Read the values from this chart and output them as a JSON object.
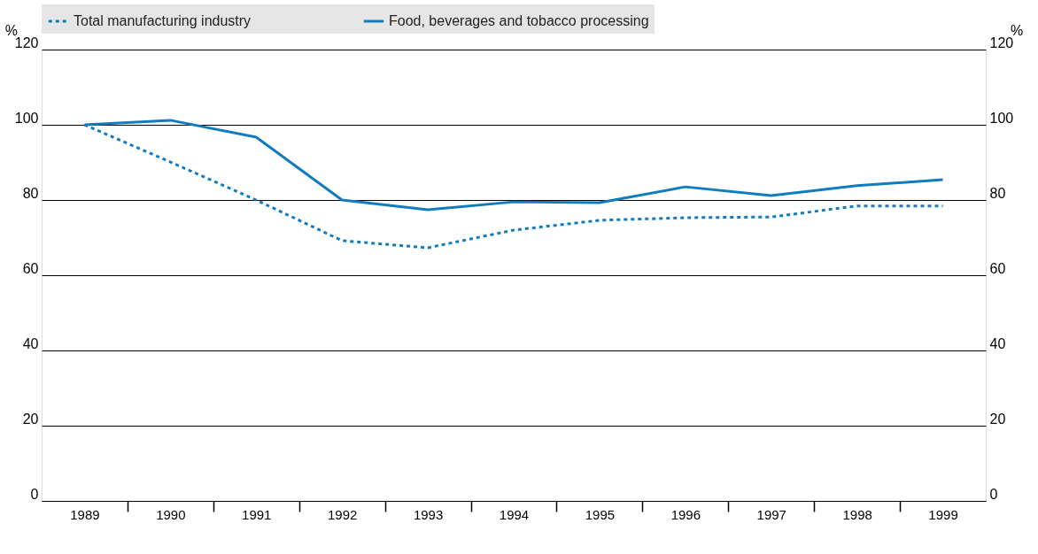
{
  "chart_data": {
    "type": "line",
    "categories": [
      "1989",
      "1990",
      "1991",
      "1992",
      "1993",
      "1994",
      "1995",
      "1996",
      "1997",
      "1998",
      "1999"
    ],
    "series": [
      {
        "name": "Total manufacturing industry",
        "color": "#0f7cc0",
        "line_style": "dotted",
        "values": [
          100,
          90.1,
          80,
          69.2,
          67.3,
          72,
          74.6,
          75.3,
          75.5,
          78.4,
          78.4
        ]
      },
      {
        "name": "Food, beverages and tobacco processing",
        "color": "#0f7cc0",
        "line_style": "solid",
        "values": [
          100,
          101.2,
          96.7,
          80,
          77.4,
          79.5,
          79.3,
          83.5,
          81.2,
          83.8,
          85.4
        ]
      }
    ],
    "ylabel": "%",
    "y2label": "%",
    "ylim": [
      0,
      120
    ],
    "yticks": [
      0,
      20,
      40,
      60,
      80,
      100,
      120
    ],
    "y2lim": [
      0,
      120
    ],
    "y2ticks": [
      0,
      20,
      40,
      60,
      80,
      100,
      120
    ],
    "grid": "y",
    "legend": "top",
    "marker": "none"
  }
}
